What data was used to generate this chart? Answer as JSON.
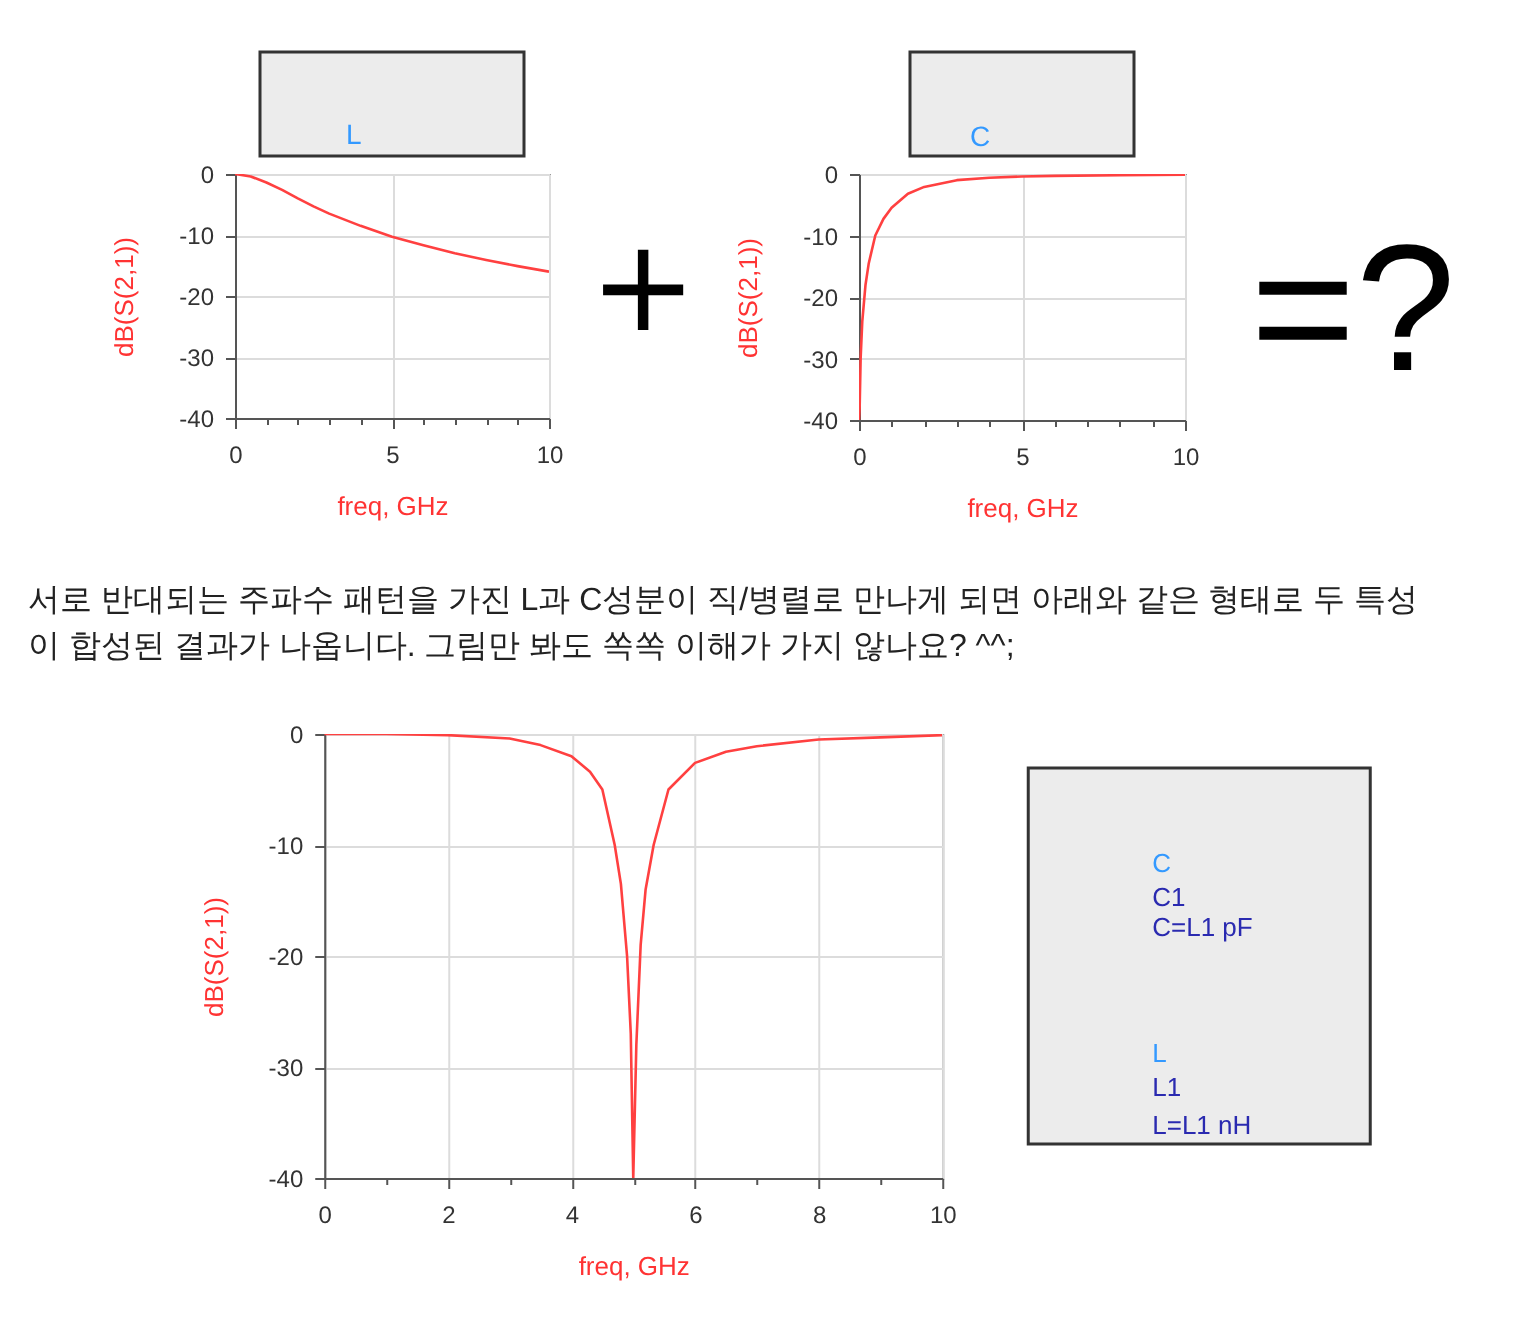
{
  "chart_data": [
    {
      "type": "line",
      "xlabel": "freq, GHz",
      "ylabel": "dB(S(2,1))",
      "xlim": [
        0,
        10
      ],
      "ylim": [
        -40,
        0
      ],
      "xticks": [
        0,
        {
          "value": 1,
          "label": null
        },
        {
          "value": 2,
          "label": null
        },
        {
          "value": 3,
          "label": null
        },
        {
          "value": 4,
          "label": null
        },
        5,
        {
          "value": 6,
          "label": null
        },
        {
          "value": 7,
          "label": null
        },
        {
          "value": 8,
          "label": null
        },
        {
          "value": 9,
          "label": null
        },
        10
      ],
      "yticks": [
        -40,
        -30,
        -20,
        -10,
        0
      ],
      "grid": true,
      "series": [
        {
          "color": "#ff4040",
          "x": [
            0,
            0.5,
            1,
            1.5,
            2,
            2.5,
            3,
            4,
            5,
            6,
            7,
            8,
            9,
            10
          ],
          "values": [
            0,
            -0.4,
            -1.4,
            -2.6,
            -4,
            -5.3,
            -6.5,
            -8.5,
            -10.3,
            -11.7,
            -13,
            -14.1,
            -15.1,
            -16
          ]
        }
      ],
      "annotations": [
        "L",
        "+"
      ]
    },
    {
      "type": "line",
      "xlabel": "freq, GHz",
      "ylabel": "dB(S(2,1))",
      "xlim": [
        0,
        10
      ],
      "ylim": [
        -40,
        0
      ],
      "xticks": [
        0,
        {
          "value": 1,
          "label": null
        },
        {
          "value": 2,
          "label": null
        },
        {
          "value": 3,
          "label": null
        },
        {
          "value": 4,
          "label": null
        },
        5,
        {
          "value": 6,
          "label": null
        },
        {
          "value": 7,
          "label": null
        },
        {
          "value": 8,
          "label": null
        },
        {
          "value": 9,
          "label": null
        },
        10
      ],
      "yticks": [
        -40,
        -30,
        -20,
        -10,
        0
      ],
      "grid": true,
      "series": [
        {
          "color": "#ff4040",
          "x": [
            0,
            0.02,
            0.05,
            0.1,
            0.2,
            0.3,
            0.5,
            0.75,
            1,
            1.5,
            2,
            3,
            4,
            5,
            6,
            8,
            10
          ],
          "values": [
            -40,
            -38,
            -30,
            -24,
            -18,
            -14.5,
            -10,
            -7.3,
            -5.5,
            -3.2,
            -2.1,
            -1,
            -0.6,
            -0.4,
            -0.3,
            -0.2,
            -0.1
          ]
        }
      ],
      "annotations": [
        "C",
        "=?"
      ]
    },
    {
      "type": "line",
      "xlabel": "freq, GHz",
      "ylabel": "dB(S(2,1))",
      "xlim": [
        0,
        10
      ],
      "ylim": [
        -40,
        0
      ],
      "xticks": [
        0,
        {
          "value": 1,
          "label": null
        },
        2,
        {
          "value": 3,
          "label": null
        },
        4,
        {
          "value": 5,
          "label": null
        },
        6,
        {
          "value": 7,
          "label": null
        },
        8,
        {
          "value": 9,
          "label": null
        },
        10
      ],
      "yticks": [
        -40,
        -30,
        -20,
        -10,
        0
      ],
      "grid": true,
      "series": [
        {
          "color": "#ff4040",
          "x": [
            0,
            1,
            2,
            3,
            3.5,
            4,
            4.3,
            4.5,
            4.7,
            4.8,
            4.9,
            4.96,
            5,
            5.05,
            5.12,
            5.2,
            5.33,
            5.57,
            6,
            6.5,
            7,
            8,
            9,
            10
          ],
          "values": [
            0,
            0,
            -0.1,
            -0.4,
            -1,
            -2,
            -3.4,
            -5,
            -10,
            -13.5,
            -20,
            -27,
            -40,
            -28,
            -19,
            -14,
            -10,
            -5,
            -2.6,
            -1.6,
            -1.1,
            -0.5,
            -0.3,
            -0.1
          ]
        }
      ],
      "annotations": [
        "서로 반대되는 주파수 패턴을 가진 L과 C성분이 직/병렬로 만나게 되면 아래와 같은 형태로 두 특성이 합성된 결과가 나옵니다. 그림만 봐도 쏙쏙 이해가 가지 않나요? ^^;",
        "C",
        "C1",
        "C=L1 pF",
        "L",
        "L1",
        "L=L1 nH"
      ]
    }
  ]
}
